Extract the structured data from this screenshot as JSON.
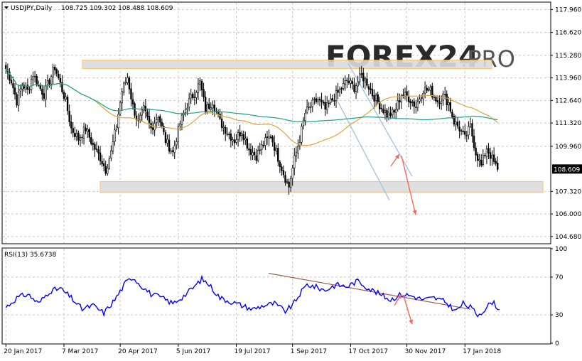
{
  "header": {
    "title": "USDJPY,Daily",
    "ohlc": "108.725 109.302 108.488 108.609"
  },
  "watermark": {
    "text": "FOREX24",
    "suffix": ".PRO"
  },
  "colors": {
    "candle": "#000000",
    "ma_fast": "#e0a53a",
    "ma_slow": "#1aa08c",
    "zone_fill": "#dcdcdc",
    "zone_border": "#f0c060",
    "channel": "#a8c4dc",
    "arrow": "#f06a5e",
    "rsi_line": "#0000ff",
    "rsi_trend": "#a06050",
    "grid": "#c8c8c8",
    "price_tag_bg": "#000000",
    "price_tag_fg": "#ffffff"
  },
  "chart_data": [
    {
      "type": "candlestick",
      "title": "USDJPY,Daily",
      "price_ticks": [
        "117.960",
        "116.620",
        "115.280",
        "113.960",
        "112.640",
        "111.320",
        "109.960",
        "108.609",
        "107.320",
        "106.000",
        "104.680"
      ],
      "price_tick_values": [
        117.96,
        116.62,
        115.28,
        113.96,
        112.64,
        111.32,
        109.96,
        107.32,
        106.0,
        104.68
      ],
      "current_price": 108.609,
      "current_price_label": "108.609",
      "ylim": [
        104.3,
        118.35
      ],
      "date_ticks": [
        "20 Jan 2017",
        "7 Mar 2017",
        "20 Apr 2017",
        "5 Jun 2017",
        "19 Jul 2017",
        "1 Sep 2017",
        "17 Oct 2017",
        "30 Nov 2017",
        "17 Jan 2018"
      ],
      "date_tick_index": [
        0,
        32,
        63,
        95,
        127,
        158,
        190,
        221,
        253
      ],
      "bars": 300,
      "close_anchors": [
        [
          0,
          114.5
        ],
        [
          3,
          113.8
        ],
        [
          6,
          112.6
        ],
        [
          9,
          113.6
        ],
        [
          12,
          113.2
        ],
        [
          15,
          114.2
        ],
        [
          18,
          113.5
        ],
        [
          21,
          113.0
        ],
        [
          24,
          113.8
        ],
        [
          27,
          114.6
        ],
        [
          30,
          113.6
        ],
        [
          33,
          112.6
        ],
        [
          36,
          111.0
        ],
        [
          40,
          110.4
        ],
        [
          44,
          111.0
        ],
        [
          48,
          110.0
        ],
        [
          52,
          109.3
        ],
        [
          55,
          108.6
        ],
        [
          58,
          109.6
        ],
        [
          61,
          111.2
        ],
        [
          64,
          113.2
        ],
        [
          67,
          114.0
        ],
        [
          70,
          112.3
        ],
        [
          73,
          111.3
        ],
        [
          76,
          112.1
        ],
        [
          80,
          111.0
        ],
        [
          84,
          111.8
        ],
        [
          88,
          110.3
        ],
        [
          92,
          109.6
        ],
        [
          96,
          111.3
        ],
        [
          100,
          112.4
        ],
        [
          104,
          113.1
        ],
        [
          107,
          113.7
        ],
        [
          110,
          112.1
        ],
        [
          114,
          112.6
        ],
        [
          118,
          111.4
        ],
        [
          122,
          110.8
        ],
        [
          126,
          110.3
        ],
        [
          130,
          110.9
        ],
        [
          134,
          109.8
        ],
        [
          138,
          109.4
        ],
        [
          142,
          110.1
        ],
        [
          146,
          110.6
        ],
        [
          150,
          109.3
        ],
        [
          154,
          108.1
        ],
        [
          156,
          107.6
        ],
        [
          159,
          109.2
        ],
        [
          162,
          110.4
        ],
        [
          165,
          111.9
        ],
        [
          168,
          112.3
        ],
        [
          172,
          112.7
        ],
        [
          176,
          112.1
        ],
        [
          180,
          112.7
        ],
        [
          184,
          113.2
        ],
        [
          188,
          113.8
        ],
        [
          192,
          113.4
        ],
        [
          196,
          114.1
        ],
        [
          199,
          113.7
        ],
        [
          202,
          113.0
        ],
        [
          206,
          112.4
        ],
        [
          210,
          111.8
        ],
        [
          214,
          111.9
        ],
        [
          218,
          113.0
        ],
        [
          222,
          112.8
        ],
        [
          226,
          112.3
        ],
        [
          230,
          113.3
        ],
        [
          234,
          113.2
        ],
        [
          238,
          112.6
        ],
        [
          241,
          112.9
        ],
        [
          244,
          112.5
        ],
        [
          247,
          111.4
        ],
        [
          250,
          111.0
        ],
        [
          253,
          110.4
        ],
        [
          256,
          111.1
        ],
        [
          259,
          109.6
        ],
        [
          262,
          108.8
        ],
        [
          265,
          109.9
        ],
        [
          268,
          109.2
        ],
        [
          271,
          108.6
        ]
      ],
      "overlays": [
        "ma_fast",
        "ma_slow",
        "resistance_zone",
        "support_zone",
        "descending_channel",
        "forecast_arrows"
      ]
    },
    {
      "type": "line",
      "title": "RSI(13) 35.6738",
      "label": "RSI(13)",
      "value_label": "35.6738",
      "y_ticks": [
        "100",
        "70",
        "30",
        "0"
      ],
      "y_tick_values": [
        100,
        70,
        30,
        0
      ],
      "ylim": [
        0,
        100
      ],
      "anchors": [
        [
          0,
          38
        ],
        [
          6,
          48
        ],
        [
          12,
          52
        ],
        [
          18,
          42
        ],
        [
          24,
          55
        ],
        [
          30,
          58
        ],
        [
          36,
          48
        ],
        [
          42,
          36
        ],
        [
          48,
          40
        ],
        [
          54,
          32
        ],
        [
          60,
          46
        ],
        [
          66,
          64
        ],
        [
          70,
          70
        ],
        [
          74,
          62
        ],
        [
          80,
          52
        ],
        [
          86,
          48
        ],
        [
          92,
          42
        ],
        [
          98,
          50
        ],
        [
          104,
          60
        ],
        [
          108,
          68
        ],
        [
          112,
          62
        ],
        [
          118,
          48
        ],
        [
          124,
          44
        ],
        [
          130,
          40
        ],
        [
          136,
          36
        ],
        [
          142,
          40
        ],
        [
          148,
          42
        ],
        [
          154,
          34
        ],
        [
          158,
          40
        ],
        [
          162,
          52
        ],
        [
          166,
          62
        ],
        [
          170,
          60
        ],
        [
          176,
          56
        ],
        [
          182,
          62
        ],
        [
          188,
          60
        ],
        [
          194,
          66
        ],
        [
          200,
          58
        ],
        [
          206,
          52
        ],
        [
          212,
          46
        ],
        [
          218,
          52
        ],
        [
          224,
          50
        ],
        [
          230,
          46
        ],
        [
          236,
          48
        ],
        [
          242,
          44
        ],
        [
          248,
          34
        ],
        [
          252,
          42
        ],
        [
          256,
          38
        ],
        [
          260,
          30
        ],
        [
          264,
          36
        ],
        [
          268,
          44
        ],
        [
          272,
          36
        ]
      ]
    }
  ]
}
